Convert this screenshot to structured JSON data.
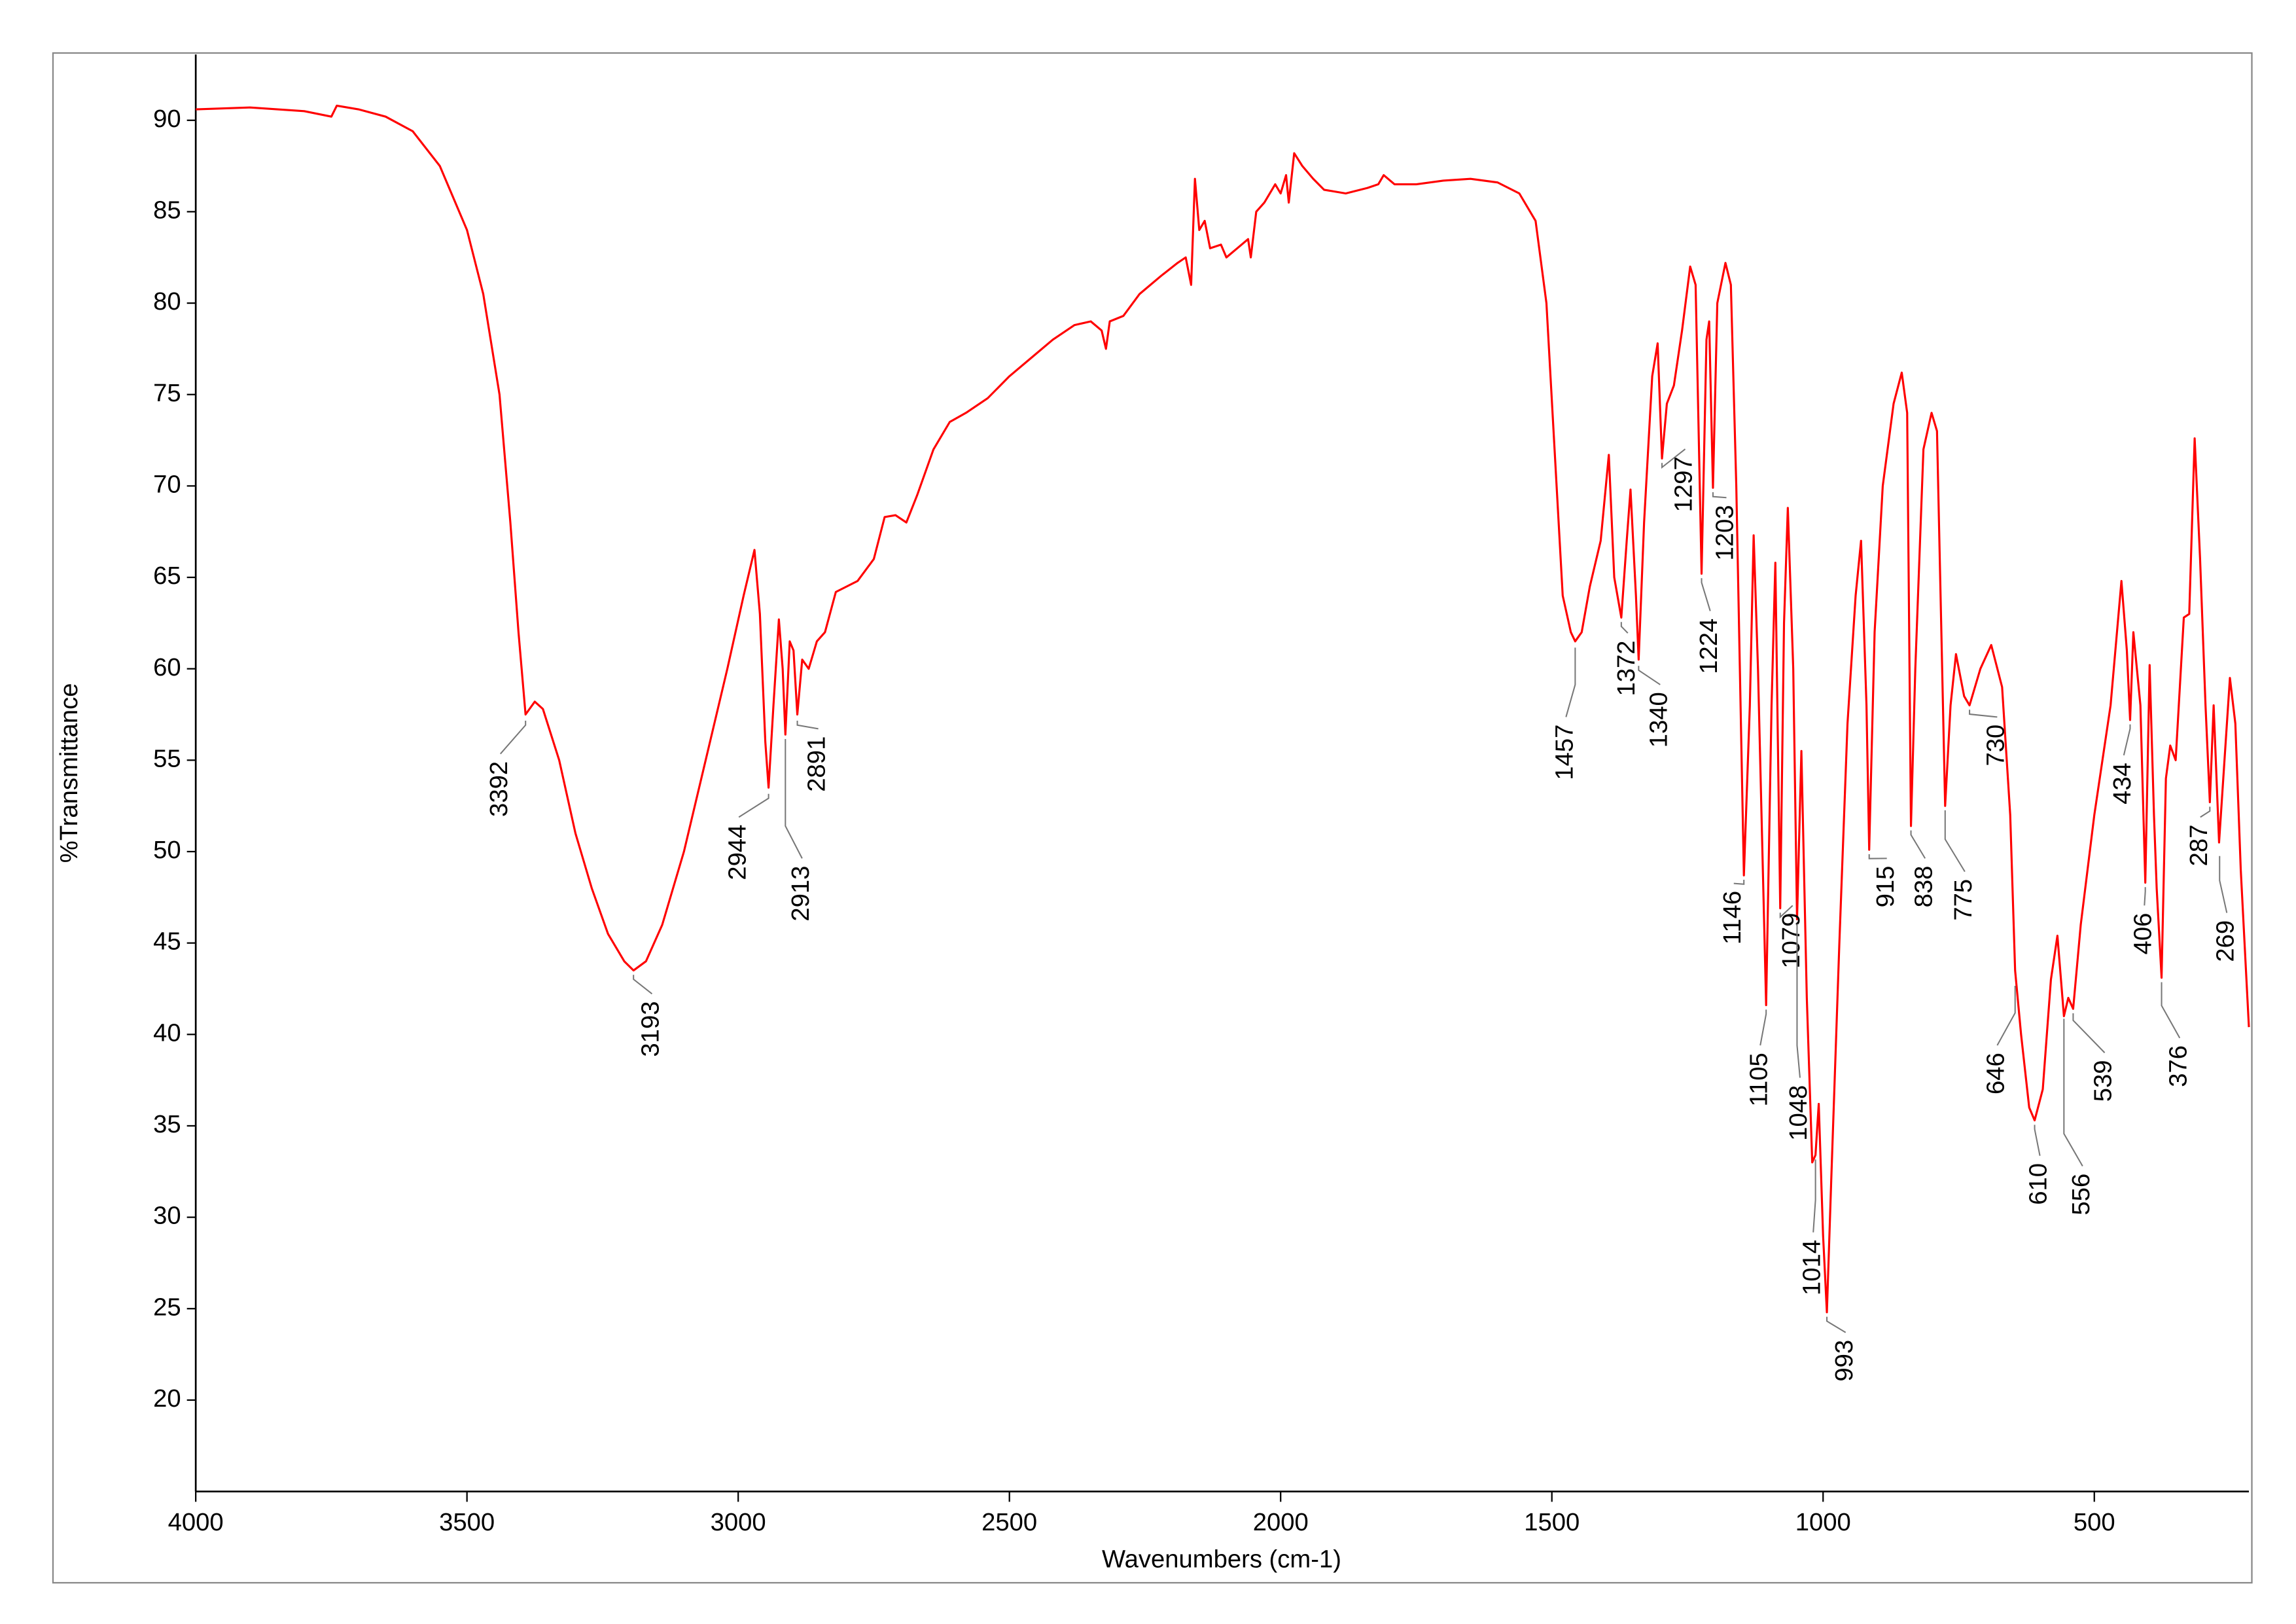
{
  "chart_data": {
    "type": "line",
    "x_label": "Wavenumbers (cm-1)",
    "y_label": "%Transmittance",
    "color": "#ff0000",
    "xlim": [
      4000,
      215
    ],
    "ylim": [
      15,
      93.6
    ],
    "xticks": [
      4000,
      3500,
      3000,
      2500,
      2000,
      1500,
      1000,
      500
    ],
    "yticks": [
      20,
      25,
      30,
      35,
      40,
      45,
      50,
      55,
      60,
      65,
      70,
      75,
      80,
      85,
      90
    ],
    "x": [
      4000,
      3900,
      3800,
      3750,
      3740,
      3700,
      3650,
      3600,
      3550,
      3500,
      3470,
      3440,
      3420,
      3405,
      3392,
      3375,
      3360,
      3330,
      3300,
      3270,
      3240,
      3210,
      3193,
      3170,
      3140,
      3100,
      3060,
      3020,
      2990,
      2970,
      2960,
      2950,
      2944,
      2935,
      2925,
      2918,
      2913,
      2905,
      2898,
      2891,
      2882,
      2870,
      2855,
      2840,
      2820,
      2800,
      2780,
      2750,
      2730,
      2710,
      2690,
      2670,
      2640,
      2610,
      2580,
      2540,
      2500,
      2460,
      2420,
      2380,
      2350,
      2330,
      2322,
      2315,
      2290,
      2260,
      2220,
      2190,
      2175,
      2165,
      2158,
      2150,
      2140,
      2130,
      2110,
      2100,
      2080,
      2060,
      2055,
      2045,
      2030,
      2010,
      2000,
      1990,
      1985,
      1975,
      1960,
      1940,
      1920,
      1880,
      1840,
      1820,
      1810,
      1790,
      1750,
      1700,
      1650,
      1600,
      1560,
      1530,
      1510,
      1495,
      1480,
      1465,
      1457,
      1445,
      1430,
      1410,
      1395,
      1385,
      1372,
      1362,
      1355,
      1345,
      1340,
      1330,
      1315,
      1305,
      1297,
      1288,
      1275,
      1260,
      1245,
      1235,
      1224,
      1215,
      1210,
      1203,
      1195,
      1180,
      1170,
      1160,
      1146,
      1135,
      1128,
      1120,
      1105,
      1095,
      1088,
      1079,
      1072,
      1065,
      1055,
      1048,
      1040,
      1030,
      1020,
      1014,
      1008,
      1000,
      993,
      985,
      970,
      955,
      940,
      930,
      920,
      915,
      905,
      890,
      870,
      855,
      845,
      838,
      830,
      815,
      800,
      790,
      775,
      765,
      755,
      740,
      730,
      710,
      690,
      670,
      655,
      646,
      635,
      620,
      610,
      595,
      580,
      568,
      556,
      548,
      539,
      525,
      500,
      470,
      450,
      440,
      434,
      428,
      415,
      406,
      398,
      390,
      385,
      376,
      368,
      360,
      350,
      335,
      325,
      315,
      305,
      295,
      287,
      280,
      270,
      260,
      250,
      240,
      230,
      215
    ],
    "values": [
      90.6,
      90.7,
      90.5,
      90.2,
      90.8,
      90.6,
      90.2,
      89.4,
      87.5,
      84.0,
      80.5,
      75.0,
      68.0,
      62.0,
      57.5,
      58.2,
      57.8,
      55.0,
      51.0,
      48.0,
      45.5,
      44.0,
      43.5,
      44.0,
      46.0,
      50.0,
      55.0,
      60.0,
      64.0,
      66.5,
      63.0,
      56.0,
      53.5,
      58.0,
      62.7,
      60.0,
      56.4,
      61.5,
      61.0,
      57.5,
      60.5,
      60.0,
      61.5,
      62.0,
      64.2,
      64.5,
      64.8,
      66.0,
      68.3,
      68.4,
      68.0,
      69.5,
      72.0,
      73.5,
      74.0,
      74.8,
      76.0,
      77.0,
      78.0,
      78.8,
      79.0,
      78.5,
      77.5,
      79.0,
      79.3,
      80.5,
      81.5,
      82.2,
      82.5,
      81.0,
      86.8,
      84.0,
      84.5,
      83.0,
      83.2,
      82.5,
      83.0,
      83.5,
      82.5,
      85.0,
      85.5,
      86.5,
      86.0,
      87.0,
      85.5,
      88.2,
      87.5,
      86.8,
      86.2,
      86.0,
      86.3,
      86.5,
      87.0,
      86.5,
      86.5,
      86.7,
      86.8,
      86.6,
      86.0,
      84.5,
      80.0,
      72.0,
      64.0,
      62.0,
      61.5,
      62.0,
      64.5,
      67.0,
      71.7,
      65.0,
      62.8,
      67.0,
      69.8,
      64.0,
      60.5,
      68.0,
      76.0,
      77.8,
      71.5,
      74.5,
      75.5,
      78.5,
      82.0,
      81.0,
      65.2,
      78.0,
      79.0,
      69.9,
      80.0,
      82.2,
      81.0,
      70.0,
      48.7,
      58.0,
      67.3,
      60.0,
      41.6,
      58.0,
      65.8,
      46.9,
      62.5,
      68.8,
      60.0,
      46.3,
      55.5,
      42.0,
      33.0,
      33.4,
      36.2,
      29.0,
      24.8,
      32.0,
      45.0,
      57.0,
      64.0,
      67.0,
      58.0,
      50.1,
      62.0,
      70.0,
      74.5,
      76.2,
      74.0,
      51.4,
      60.0,
      72.0,
      74.0,
      73.0,
      52.5,
      58.0,
      60.8,
      58.5,
      58.0,
      60.0,
      61.3,
      59.0,
      52.0,
      43.5,
      40.0,
      36.0,
      35.3,
      37.0,
      43.0,
      45.4,
      41.0,
      42.0,
      41.4,
      46.0,
      52.0,
      58.0,
      64.8,
      61.0,
      57.2,
      62.0,
      58.0,
      48.3,
      60.2,
      52.0,
      48.0,
      43.1,
      54.0,
      55.8,
      55.0,
      62.8,
      63.0,
      72.6,
      66.0,
      58.0,
      52.7,
      58.0,
      50.5,
      55.0,
      59.5,
      57.0,
      49.0,
      40.4
    ],
    "annotations": [
      {
        "x": 3392,
        "y": 57.4
      },
      {
        "x": 3193,
        "y": 43.5
      },
      {
        "x": 2944,
        "y": 53.4
      },
      {
        "x": 2913,
        "y": 56.4
      },
      {
        "x": 2891,
        "y": 57.4
      },
      {
        "x": 1457,
        "y": 61.4
      },
      {
        "x": 1372,
        "y": 62.8
      },
      {
        "x": 1340,
        "y": 60.4
      },
      {
        "x": 1297,
        "y": 71.5
      },
      {
        "x": 1224,
        "y": 65.2
      },
      {
        "x": 1203,
        "y": 69.9
      },
      {
        "x": 1146,
        "y": 48.7
      },
      {
        "x": 1105,
        "y": 41.6
      },
      {
        "x": 1079,
        "y": 46.9
      },
      {
        "x": 1048,
        "y": 46.3
      },
      {
        "x": 1014,
        "y": 33.4
      },
      {
        "x": 993,
        "y": 24.8
      },
      {
        "x": 915,
        "y": 50.1
      },
      {
        "x": 838,
        "y": 51.4
      },
      {
        "x": 775,
        "y": 52.5
      },
      {
        "x": 730,
        "y": 58.0
      },
      {
        "x": 646,
        "y": 42.9
      },
      {
        "x": 610,
        "y": 35.3
      },
      {
        "x": 556,
        "y": 41.1
      },
      {
        "x": 539,
        "y": 41.4
      },
      {
        "x": 434,
        "y": 57.2
      },
      {
        "x": 406,
        "y": 48.3
      },
      {
        "x": 376,
        "y": 43.1
      },
      {
        "x": 287,
        "y": 52.7
      },
      {
        "x": 269,
        "y": 50.0
      }
    ]
  }
}
